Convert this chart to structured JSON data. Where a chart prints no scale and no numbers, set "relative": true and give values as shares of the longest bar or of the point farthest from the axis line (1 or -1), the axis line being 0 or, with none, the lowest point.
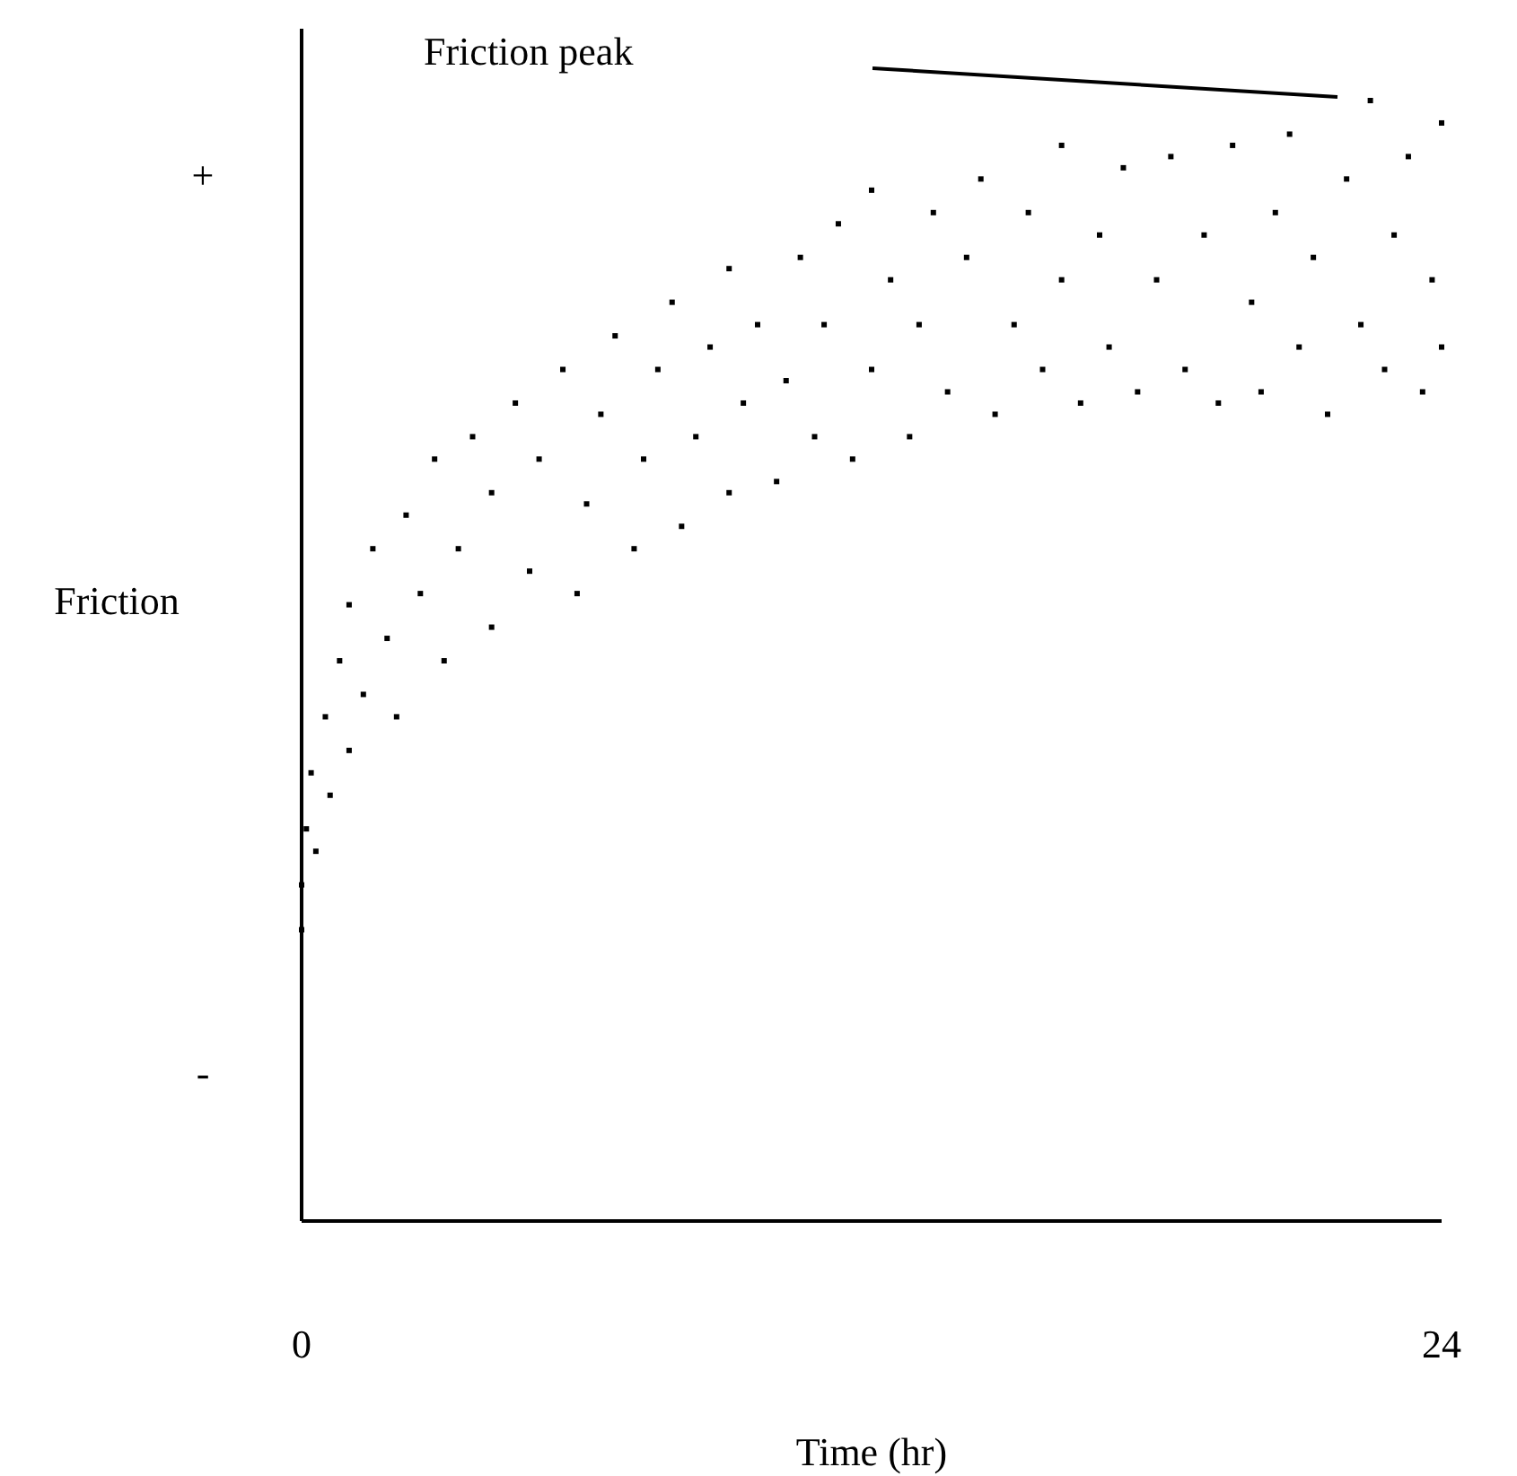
{
  "chart_data": {
    "type": "scatter",
    "relative": true,
    "xlabel": "Time (hr)",
    "ylabel": "Friction",
    "xlim": [
      0,
      24
    ],
    "xticks": [
      0,
      24
    ],
    "marker": "square",
    "annotations": [
      "Friction peak",
      "+",
      "-"
    ],
    "x": [
      0,
      0,
      0.1,
      0.2,
      0.3,
      0.5,
      0.6,
      0.8,
      1,
      1,
      1.3,
      1.5,
      1.8,
      2,
      2.2,
      2.5,
      2.8,
      3,
      3.3,
      3.6,
      4,
      4,
      4.5,
      4.8,
      5,
      5.5,
      5.8,
      6,
      6.3,
      6.6,
      7,
      7.2,
      7.5,
      7.8,
      8,
      8.3,
      8.6,
      9,
      9,
      9.3,
      9.6,
      10,
      10.2,
      10.5,
      10.8,
      11,
      11.3,
      11.6,
      12,
      12,
      12.4,
      12.8,
      13,
      13.3,
      13.6,
      14,
      14.3,
      14.6,
      15,
      15.3,
      15.6,
      16,
      16,
      16.4,
      16.8,
      17,
      17.3,
      17.6,
      18,
      18.3,
      18.6,
      19,
      19.3,
      19.6,
      20,
      20.2,
      20.5,
      20.8,
      21,
      21.3,
      21.6,
      22,
      22.3,
      22.5,
      22.8,
      23,
      23.3,
      23.6,
      23.8,
      24,
      24
    ],
    "series": [
      {
        "color": "#000000",
        "values": [
          0.3,
          0.26,
          0.35,
          0.4,
          0.33,
          0.45,
          0.38,
          0.5,
          0.42,
          0.55,
          0.47,
          0.6,
          0.52,
          0.45,
          0.63,
          0.56,
          0.68,
          0.5,
          0.6,
          0.7,
          0.53,
          0.65,
          0.73,
          0.58,
          0.68,
          0.76,
          0.56,
          0.64,
          0.72,
          0.79,
          0.6,
          0.68,
          0.76,
          0.82,
          0.62,
          0.7,
          0.78,
          0.65,
          0.85,
          0.73,
          0.8,
          0.66,
          0.75,
          0.86,
          0.7,
          0.8,
          0.89,
          0.68,
          0.76,
          0.92,
          0.84,
          0.7,
          0.8,
          0.9,
          0.74,
          0.86,
          0.93,
          0.72,
          0.8,
          0.9,
          0.76,
          0.96,
          0.84,
          0.73,
          0.88,
          0.78,
          0.94,
          0.74,
          0.84,
          0.95,
          0.76,
          0.88,
          0.73,
          0.96,
          0.82,
          0.74,
          0.9,
          0.97,
          0.78,
          0.86,
          0.72,
          0.93,
          0.8,
          1.0,
          0.76,
          0.88,
          0.95,
          0.74,
          0.84,
          0.98,
          0.78
        ]
      }
    ]
  }
}
